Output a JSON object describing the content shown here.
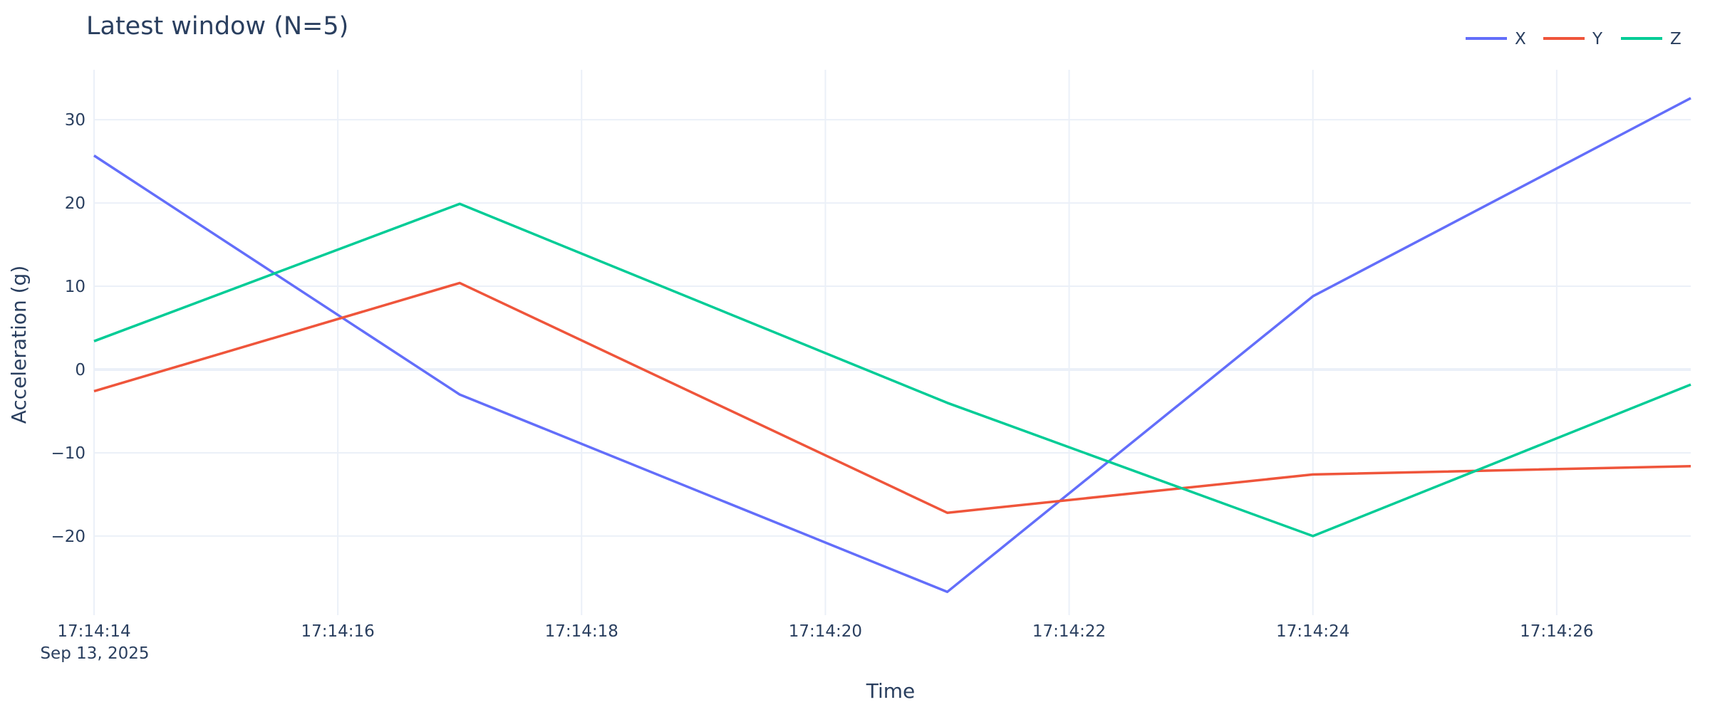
{
  "chart_data": {
    "type": "line",
    "title": "Latest window (N=5)",
    "xlabel": "Time",
    "ylabel": "Acceleration (g)",
    "x": [
      "17:14:14",
      "17:14:17",
      "17:14:21",
      "17:14:24",
      "17:14:27.1"
    ],
    "x_date_label": "Sep 13, 2025",
    "x_ticks": [
      "17:14:14",
      "17:14:16",
      "17:14:18",
      "17:14:20",
      "17:14:22",
      "17:14:24",
      "17:14:26"
    ],
    "xlim": [
      "17:14:14",
      "17:14:27.1"
    ],
    "y_ticks": [
      30,
      20,
      10,
      0,
      -10,
      -20
    ],
    "y_tick_labels": [
      "30",
      "20",
      "10",
      "0",
      "−10",
      "−20"
    ],
    "ylim": [
      -29.5,
      36
    ],
    "grid": true,
    "legend_position": "top-right",
    "series": [
      {
        "name": "X",
        "color": "#636efa",
        "values": [
          25.7,
          -3.0,
          -26.7,
          8.8,
          32.6
        ]
      },
      {
        "name": "Y",
        "color": "#ef553b",
        "values": [
          -2.6,
          10.4,
          -17.2,
          -12.6,
          -11.6
        ]
      },
      {
        "name": "Z",
        "color": "#00cc96",
        "values": [
          3.4,
          19.9,
          -4.0,
          -20.0,
          -1.8
        ]
      }
    ]
  }
}
